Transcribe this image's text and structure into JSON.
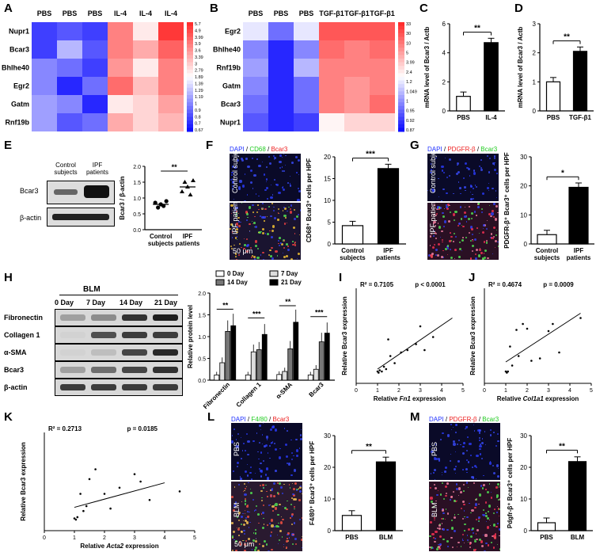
{
  "labels": [
    "A",
    "B",
    "C",
    "D",
    "E",
    "F",
    "G",
    "H",
    "I",
    "J",
    "K",
    "L",
    "M"
  ],
  "heat_a": {
    "cols": [
      "PBS",
      "PBS",
      "PBS",
      "IL-4",
      "IL-4",
      "IL-4"
    ],
    "rows": [
      "Nupr1",
      "Bcar3",
      "Bhlhe40",
      "Egr2",
      "Gatm",
      "Rnf19b"
    ],
    "scale": [
      "5.7",
      "4.9",
      "3.99",
      "3.9",
      "3.6",
      "3.39",
      "3",
      "2.79",
      "1.89",
      "1.39",
      "1.29",
      "1.19",
      "1",
      "0.9",
      "0.8",
      "0.7",
      "0.67"
    ]
  },
  "heat_b": {
    "cols": [
      "PBS",
      "PBS",
      "PBS",
      "TGF-β1",
      "TGF-β1",
      "TGF-β1"
    ],
    "rows": [
      "Egr2",
      "Bhlhe40",
      "Rnf19b",
      "Gatm",
      "Bcar3",
      "Nupr1"
    ],
    "scale": [
      "33",
      "30",
      "10",
      "5",
      "3.99",
      "2.4",
      "1.2",
      "1.049",
      "1",
      "0.95",
      "0.92",
      "0.87"
    ]
  },
  "chart_c": {
    "type": "bar",
    "categories": [
      "PBS",
      "IL-4"
    ],
    "values": [
      1.0,
      4.7
    ],
    "ylabel": "mRNA level of Bcar3 / Actb",
    "ylim": [
      0,
      6
    ],
    "yticks": [
      "0",
      "2",
      "4",
      "6"
    ],
    "sig": "**"
  },
  "chart_d": {
    "type": "bar",
    "categories": [
      "PBS",
      "TGF-β1"
    ],
    "values": [
      1.0,
      2.05
    ],
    "ylabel": "mRNA level of Bcar3 / Actb",
    "ylim": [
      0,
      3
    ],
    "yticks": [
      "0",
      "1",
      "2",
      "3"
    ],
    "sig": "**"
  },
  "blot_e": {
    "col1": "Control subjects",
    "col2": "IPF patients",
    "rows": [
      "Bcar3",
      "β-actin"
    ]
  },
  "chart_e": {
    "type": "scatter",
    "categories": [
      "Control subjects",
      "IPF patients"
    ],
    "values": [
      [
        0.85,
        0.7,
        0.8,
        0.75,
        0.9
      ],
      [
        1.2,
        1.5,
        1.35,
        1.1,
        1.55
      ]
    ],
    "means": [
      0.8,
      1.35
    ],
    "ylabel": "Bcar3 / β-actin",
    "ylim": [
      0,
      2
    ],
    "yticks": [
      "0.0",
      "0.5",
      "1.0",
      "1.5",
      "2.0"
    ],
    "sig": "**"
  },
  "micro_f": {
    "header_dapi": "DAPI",
    "header_m1": "CD68",
    "header_m2": "Bcar3",
    "top": "Control subjects",
    "bottom": "IPF patients",
    "scale": "50 μm"
  },
  "chart_f": {
    "type": "bar",
    "categories": [
      "Control subjects",
      "IPF patients"
    ],
    "values": [
      4.2,
      17.3
    ],
    "ylabel": "CD68⁺ Bcar3⁺ cells per HPF",
    "ylim": [
      0,
      20
    ],
    "yticks": [
      "0",
      "5",
      "10",
      "15",
      "20"
    ],
    "sig": "***"
  },
  "micro_g": {
    "header_dapi": "DAPI",
    "header_m1": "PDGFR-β",
    "header_m2": "Bcar3",
    "top": "Control subjects",
    "bottom": "IPF patients"
  },
  "chart_g": {
    "type": "bar",
    "categories": [
      "Control subjects",
      "IPF patients"
    ],
    "values": [
      3.2,
      19.5
    ],
    "ylabel": "PDGFR-β⁺ Bcar3⁺ cells per HPF",
    "ylim": [
      0,
      30
    ],
    "yticks": [
      "0",
      "10",
      "20",
      "30"
    ],
    "sig": "*"
  },
  "blot_h": {
    "title": "BLM",
    "cols": [
      "0 Day",
      "7 Day",
      "14 Day",
      "21 Day"
    ],
    "rows": [
      "Fibronectin",
      "Collagen 1",
      "α-SMA",
      "Bcar3",
      "β-actin"
    ]
  },
  "chart_h": {
    "type": "bar",
    "categories": [
      "Fibronectin",
      "Collagen 1",
      "α-SMA",
      "Bcar3"
    ],
    "series": [
      {
        "name": "0 Day",
        "values": [
          0.12,
          0.12,
          0.13,
          0.12
        ]
      },
      {
        "name": "7 Day",
        "values": [
          0.4,
          0.65,
          0.2,
          0.25
        ]
      },
      {
        "name": "14 Day",
        "values": [
          1.12,
          0.7,
          0.72,
          0.88
        ]
      },
      {
        "name": "21 Day",
        "values": [
          1.25,
          1.05,
          1.33,
          1.08
        ]
      }
    ],
    "ylabel": "Relative protein level",
    "ylim": [
      0,
      2
    ],
    "yticks": [
      "0.0",
      "0.5",
      "1.0",
      "1.5",
      "2.0"
    ],
    "sigs": [
      "**",
      "***",
      "**",
      "***"
    ]
  },
  "chart_i": {
    "type": "scatter",
    "r2": "R² = 0.7105",
    "p": "p < 0.0001",
    "xlabel_pre": "Relative ",
    "xlabel_gene": "Fn1",
    "xlabel_post": " expression",
    "ylabel": "Relative Bcar3 expression",
    "xlim": [
      0,
      5
    ],
    "xticks": [
      "0",
      "1",
      "2",
      "3",
      "4",
      "5"
    ],
    "ylim": [
      0,
      8
    ],
    "points": [
      [
        1,
        1.0
      ],
      [
        1.05,
        0.9
      ],
      [
        1.1,
        1.1
      ],
      [
        1.2,
        1.0
      ],
      [
        1.4,
        1.2
      ],
      [
        1.5,
        3.7
      ],
      [
        1.6,
        2.3
      ],
      [
        1.8,
        1.7
      ],
      [
        2.1,
        2.6
      ],
      [
        2.4,
        2.8
      ],
      [
        2.8,
        3.3
      ],
      [
        3,
        4.8
      ],
      [
        3.2,
        2.8
      ],
      [
        3.6,
        3.9
      ],
      [
        1.3,
        1.4
      ]
    ],
    "line": [
      [
        1,
        1.2
      ],
      [
        4.5,
        5.5
      ]
    ]
  },
  "chart_j": {
    "type": "scatter",
    "r2": "R² = 0.4674",
    "p": "p = 0.0009",
    "xlabel_pre": "Relative ",
    "xlabel_gene": "Col1a1",
    "xlabel_post": " expression",
    "ylabel": "Relative Bcar3 expression",
    "xlim": [
      0,
      5
    ],
    "xticks": [
      "0",
      "1",
      "2",
      "3",
      "4",
      "5"
    ],
    "ylim": [
      0,
      8
    ],
    "points": [
      [
        1,
        1.0
      ],
      [
        1.05,
        0.9
      ],
      [
        1.1,
        1.0
      ],
      [
        1.2,
        3.1
      ],
      [
        1.5,
        4.5
      ],
      [
        1.6,
        2.3
      ],
      [
        1.8,
        5.0
      ],
      [
        2.0,
        4.6
      ],
      [
        2.2,
        1.9
      ],
      [
        2.6,
        2.1
      ],
      [
        3.0,
        4.4
      ],
      [
        3.2,
        5.0
      ],
      [
        3.5,
        2.6
      ],
      [
        4.5,
        5.5
      ],
      [
        1.3,
        1.5
      ]
    ],
    "line": [
      [
        1,
        1.8
      ],
      [
        4.5,
        5.9
      ]
    ]
  },
  "chart_k": {
    "type": "scatter",
    "r2": "R² = 0.2713",
    "p": "p = 0.0185",
    "xlabel_pre": "Relative ",
    "xlabel_gene": "Acta2",
    "xlabel_post": " expression",
    "ylabel": "Relative Bcar3 expression",
    "xlim": [
      0,
      5
    ],
    "xticks": [
      "0",
      "1",
      "2",
      "3",
      "4",
      "5"
    ],
    "ylim": [
      0,
      8
    ],
    "points": [
      [
        1,
        1.0
      ],
      [
        1.05,
        0.9
      ],
      [
        1.1,
        1.1
      ],
      [
        1.2,
        3.0
      ],
      [
        1.4,
        2.0
      ],
      [
        1.5,
        4.2
      ],
      [
        1.7,
        5.0
      ],
      [
        2.0,
        3.0
      ],
      [
        2.2,
        1.8
      ],
      [
        2.5,
        3.5
      ],
      [
        3.0,
        4.6
      ],
      [
        3.2,
        4.0
      ],
      [
        3.5,
        2.5
      ],
      [
        4.5,
        3.2
      ],
      [
        1.3,
        1.6
      ]
    ],
    "line": [
      [
        1,
        1.9
      ],
      [
        4,
        3.9
      ]
    ]
  },
  "micro_l": {
    "header_dapi": "DAPI",
    "header_m1": "F4/80",
    "header_m2": "Bcar3",
    "top": "PBS",
    "bottom": "BLM",
    "scale": "50 μm"
  },
  "chart_l": {
    "type": "bar",
    "categories": [
      "PBS",
      "BLM"
    ],
    "values": [
      4.8,
      21.7
    ],
    "ylabel": "F4/80⁺ Bcar3⁺ cells per HPF",
    "ylim": [
      0,
      30
    ],
    "yticks": [
      "0",
      "10",
      "20",
      "30"
    ],
    "sig": "**"
  },
  "micro_m": {
    "header_dapi": "DAPI",
    "header_m1": "PDGFR-β",
    "header_m2": "Bcar3",
    "top": "PBS",
    "bottom": "BLM"
  },
  "chart_m": {
    "type": "bar",
    "categories": [
      "PBS",
      "BLM"
    ],
    "values": [
      2.5,
      21.8
    ],
    "ylabel": "Pdgfr-β⁺ Bcar3⁺ cells per HPF",
    "ylim": [
      0,
      30
    ],
    "yticks": [
      "0",
      "10",
      "20",
      "30"
    ],
    "sig": "**"
  }
}
